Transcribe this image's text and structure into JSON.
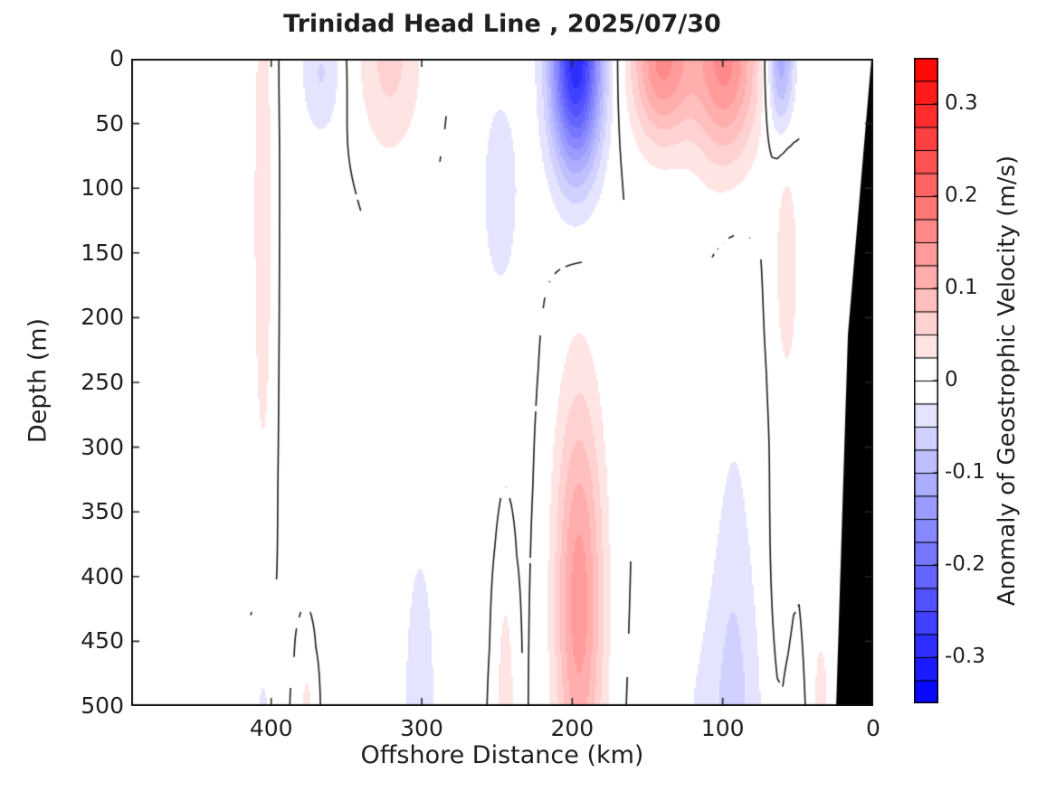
{
  "title": "Trinidad Head Line , 2025/07/30",
  "x_axis": {
    "label": "Offshore Distance (km)",
    "ticks": [
      400,
      300,
      200,
      100,
      0
    ],
    "range": [
      0,
      493
    ],
    "reversed": true
  },
  "y_axis": {
    "label": "Depth (m)",
    "ticks": [
      0,
      50,
      100,
      150,
      200,
      250,
      300,
      350,
      400,
      450,
      500
    ],
    "range": [
      0,
      500
    ],
    "reversed": true
  },
  "colorbar": {
    "label": "Anomaly of Geostrophic Velocity (m/s)",
    "tick_labels": [
      "0.3",
      "0.2",
      "0.1",
      "0",
      "-0.1",
      "-0.2",
      "-0.3"
    ],
    "tick_values": [
      0.3,
      0.2,
      0.1,
      0,
      -0.1,
      -0.2,
      -0.3
    ],
    "min": -0.35,
    "max": 0.35,
    "n_segments": 28,
    "positive_color": "#ff0000",
    "negative_color": "#0000ff",
    "zero_color": "#ffffff",
    "coast_mask_color": "#000000"
  },
  "chart_data": {
    "type": "filled_contour",
    "title": "Trinidad Head Line , 2025/07/30",
    "transect": "Trinidad Head Line",
    "date": "2025/07/30",
    "xlabel": "Offshore Distance (km)",
    "ylabel": "Depth (m)",
    "zlabel": "Anomaly of Geostrophic Velocity (m/s)",
    "units": "m/s",
    "x_range": [
      0,
      493
    ],
    "x_reversed": true,
    "depth_range": [
      0,
      500
    ],
    "contour_interval": 0.025,
    "color_limits": [
      -0.35,
      0.35
    ],
    "zero_contour_line": true,
    "contour_line_threshold": 0.0015,
    "coast_mask_polygon": [
      {
        "km": 1.2,
        "depth_m": 0
      },
      {
        "km": 16.8,
        "depth_m": 213
      },
      {
        "km": 24.6,
        "depth_m": 500
      },
      {
        "km": 0,
        "depth_m": 500
      },
      {
        "km": 0,
        "depth_m": 0
      }
    ],
    "features": [
      {
        "offshore_km": 198,
        "depth_m": 0,
        "value_ms": -0.29,
        "label": "strong negative surface core near 200 km"
      },
      {
        "offshore_km": 120,
        "depth_m": 0,
        "value_ms": 0.16,
        "label": "positive surface lobe, double core at 99 and 141 km"
      },
      {
        "offshore_km": 62,
        "depth_m": 0,
        "value_ms": -0.12,
        "label": "small negative surface core near 62 km"
      },
      {
        "offshore_km": 196,
        "depth_m": 420,
        "value_ms": 0.14,
        "label": "deep positive column under 200 km"
      },
      {
        "offshore_km": 100,
        "depth_m": 480,
        "value_ms": -0.05,
        "label": "broad weak negative pool at depth near coast"
      },
      {
        "offshore_km": 406,
        "depth_m": 100,
        "value_ms": 0.046,
        "label": "weak positive band near 406 km"
      },
      {
        "offshore_km": 322,
        "depth_m": 10,
        "value_ms": 0.058,
        "label": "weak positive surface band near 322 km"
      },
      {
        "offshore_km": 367,
        "depth_m": 10,
        "value_ms": -0.045,
        "label": "weak negative surface patch near 367 km"
      },
      {
        "offshore_km": 248,
        "depth_m": 100,
        "value_ms": -0.04,
        "label": "weak negative patch 45-150 m near 248 km"
      },
      {
        "offshore_km": 58,
        "depth_m": 160,
        "value_ms": 0.045,
        "label": "weak positive band 90-230 m near 58 km"
      }
    ],
    "gaussian_components": [
      {
        "km": 406,
        "sigma_km": 7,
        "depth_m": 120,
        "sigma_m": 220,
        "amplitude": 0.046
      },
      {
        "km": 322,
        "sigma_km": 22,
        "depth_m": 0,
        "sigma_m": 75,
        "amplitude": 0.058
      },
      {
        "km": 196,
        "sigma_km": 16,
        "depth_m": 420,
        "sigma_m": 160,
        "amplitude": 0.14
      },
      {
        "km": 141,
        "sigma_km": 20,
        "depth_m": 0,
        "sigma_m": 62,
        "amplitude": 0.155
      },
      {
        "km": 99,
        "sigma_km": 22,
        "depth_m": 0,
        "sigma_m": 78,
        "amplitude": 0.16
      },
      {
        "km": 58,
        "sigma_km": 8,
        "depth_m": 160,
        "sigma_m": 90,
        "amplitude": 0.045
      },
      {
        "km": 36,
        "sigma_km": 12,
        "depth_m": 500,
        "sigma_m": 120,
        "amplitude": 0.03
      },
      {
        "km": 60,
        "sigma_km": 9,
        "depth_m": 420,
        "sigma_m": 110,
        "amplitude": 0.018
      },
      {
        "km": 377,
        "sigma_km": 5,
        "depth_m": 520,
        "sigma_m": 60,
        "amplitude": 0.04
      },
      {
        "km": 245,
        "sigma_km": 7,
        "depth_m": 530,
        "sigma_m": 140,
        "amplitude": 0.05
      },
      {
        "km": 198,
        "sigma_km": 17,
        "depth_m": 0,
        "sigma_m": 85,
        "amplitude": -0.295
      },
      {
        "km": 248,
        "sigma_km": 12,
        "depth_m": 100,
        "sigma_m": 75,
        "amplitude": -0.04
      },
      {
        "km": 367,
        "sigma_km": 13,
        "depth_m": 10,
        "sigma_m": 45,
        "amplitude": -0.045
      },
      {
        "km": 93,
        "sigma_km": 14,
        "depth_m": 500,
        "sigma_m": 290,
        "amplitude": -0.033
      },
      {
        "km": 102,
        "sigma_km": 38,
        "depth_m": 530,
        "sigma_m": 150,
        "amplitude": -0.032
      },
      {
        "km": 51,
        "sigma_km": 7,
        "depth_m": 560,
        "sigma_m": 110,
        "amplitude": -0.038
      },
      {
        "km": 406,
        "sigma_km": 6,
        "depth_m": 540,
        "sigma_m": 90,
        "amplitude": -0.04
      },
      {
        "km": 62,
        "sigma_km": 9,
        "depth_m": 0,
        "sigma_m": 55,
        "amplitude": -0.12
      },
      {
        "km": 302,
        "sigma_km": 11,
        "depth_m": 520,
        "sigma_m": 150,
        "amplitude": -0.05
      },
      {
        "km": 370,
        "sigma_km": 26,
        "depth_m": 140,
        "sigma_m": 260,
        "amplitude": -0.009
      },
      {
        "km": 255,
        "sigma_km": 30,
        "depth_m": 250,
        "sigma_m": 300,
        "amplitude": -0.008
      }
    ]
  }
}
